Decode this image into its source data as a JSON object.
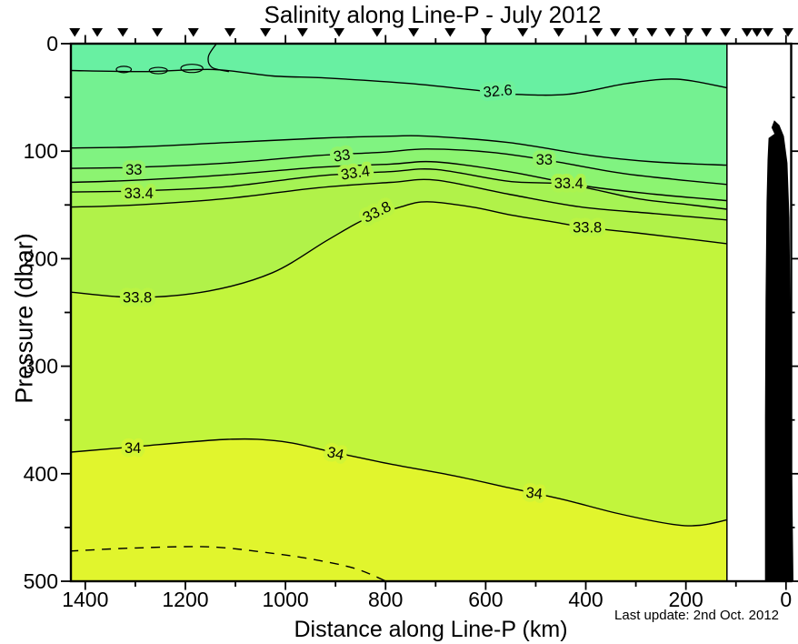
{
  "footer": {
    "last_update": "Last update: 2nd Oct. 2012"
  },
  "chart_data": {
    "type": "filled-contour-section",
    "title": "Salinity along Line-P - July 2012",
    "xlabel": "Distance along Line-P (km)",
    "ylabel": "Pressure (dbar)",
    "x_axis": {
      "label_ticks": [
        1400,
        1200,
        1000,
        800,
        600,
        400,
        200,
        0
      ],
      "minor_step_km": 100,
      "max_km": 1430,
      "min_km": -10,
      "reversed": true
    },
    "y_axis": {
      "label_ticks": [
        0,
        100,
        200,
        300,
        400,
        500
      ],
      "minor_step_dbar": 50,
      "min_dbar": 0,
      "max_dbar": 500
    },
    "data_region": {
      "from_km": 1432,
      "to_km": 118
    },
    "station_positions_km": [
      1421,
      1376,
      1325,
      1256,
      1184,
      1111,
      1040,
      966,
      893,
      817,
      744,
      671,
      599,
      526,
      454,
      377,
      341,
      305,
      268,
      232,
      196,
      159,
      121,
      78,
      58,
      36,
      -4
    ],
    "band_levels": [
      "<32.6",
      "32.6-32.8",
      "32.8-33.0",
      "33.0-33.2",
      "33.2-33.4",
      "33.4-33.6",
      "33.6-33.8",
      "33.8-34.0",
      ">34.0"
    ],
    "band_colors": [
      "#68F0A2",
      "#74F191",
      "#80F381",
      "#8CF471",
      "#99F461",
      "#A5F354",
      "#B1F249",
      "#C2F53C",
      "#E1F52D"
    ],
    "contours": [
      {
        "salinity": 32.6,
        "points_km_dbar": [
          [
            1432,
            25
          ],
          [
            1280,
            26
          ],
          [
            1144,
            24
          ],
          [
            1026,
            30
          ],
          [
            917,
            32
          ],
          [
            753,
            37
          ],
          [
            626,
            43
          ],
          [
            544,
            47
          ],
          [
            435,
            47
          ],
          [
            317,
            37
          ],
          [
            218,
            33
          ],
          [
            118,
            41
          ]
        ]
      },
      {
        "salinity": 32.8,
        "points_km_dbar": [
          [
            1432,
            97
          ],
          [
            1298,
            96
          ],
          [
            1116,
            92
          ],
          [
            935,
            88
          ],
          [
            790,
            86
          ],
          [
            717,
            86
          ],
          [
            554,
            92
          ],
          [
            390,
            104
          ],
          [
            263,
            110
          ],
          [
            118,
            113
          ]
        ]
      },
      {
        "salinity": 33.0,
        "points_km_dbar": [
          [
            1432,
            116
          ],
          [
            1298,
            115
          ],
          [
            1116,
            111
          ],
          [
            935,
            104
          ],
          [
            808,
            101
          ],
          [
            717,
            98
          ],
          [
            590,
            101
          ],
          [
            481,
            108
          ],
          [
            336,
            120
          ],
          [
            227,
            126
          ],
          [
            118,
            131
          ]
        ]
      },
      {
        "salinity": 33.2,
        "points_km_dbar": [
          [
            1432,
            129
          ],
          [
            1298,
            127
          ],
          [
            1116,
            122
          ],
          [
            935,
            115
          ],
          [
            790,
            112
          ],
          [
            699,
            110
          ],
          [
            554,
            119
          ],
          [
            408,
            132
          ],
          [
            263,
            140
          ],
          [
            118,
            146
          ]
        ]
      },
      {
        "salinity": 33.4,
        "points_km_dbar": [
          [
            1432,
            138
          ],
          [
            1298,
            137
          ],
          [
            1116,
            133
          ],
          [
            935,
            123
          ],
          [
            790,
            119
          ],
          [
            699,
            117
          ],
          [
            554,
            128
          ],
          [
            435,
            131
          ],
          [
            299,
            144
          ],
          [
            190,
            150
          ],
          [
            118,
            154
          ]
        ]
      },
      {
        "salinity": 33.6,
        "points_km_dbar": [
          [
            1432,
            152
          ],
          [
            1298,
            150
          ],
          [
            1116,
            144
          ],
          [
            935,
            134
          ],
          [
            790,
            129
          ],
          [
            699,
            127
          ],
          [
            554,
            140
          ],
          [
            408,
            152
          ],
          [
            263,
            158
          ],
          [
            118,
            164
          ]
        ]
      },
      {
        "salinity": 33.8,
        "points_km_dbar": [
          [
            1432,
            231
          ],
          [
            1298,
            236
          ],
          [
            1153,
            230
          ],
          [
            1026,
            213
          ],
          [
            917,
            183
          ],
          [
            844,
            164
          ],
          [
            771,
            152
          ],
          [
            717,
            147
          ],
          [
            626,
            152
          ],
          [
            554,
            159
          ],
          [
            463,
            166
          ],
          [
            397,
            171
          ],
          [
            299,
            176
          ],
          [
            208,
            181
          ],
          [
            118,
            186
          ]
        ]
      },
      {
        "salinity": 34.0,
        "points_km_dbar": [
          [
            1432,
            380
          ],
          [
            1305,
            375
          ],
          [
            1116,
            368
          ],
          [
            1007,
            370
          ],
          [
            904,
            380
          ],
          [
            790,
            391
          ],
          [
            662,
            402
          ],
          [
            554,
            413
          ],
          [
            445,
            424
          ],
          [
            336,
            437
          ],
          [
            227,
            447
          ],
          [
            172,
            448
          ],
          [
            118,
            443
          ]
        ]
      }
    ],
    "dashed_contour": {
      "salinity": 34.2,
      "points_km_dbar": [
        [
          1432,
          472
        ],
        [
          1298,
          469
        ],
        [
          1153,
          468
        ],
        [
          1044,
          473
        ],
        [
          953,
          479
        ],
        [
          862,
          488
        ],
        [
          799,
          500
        ]
      ]
    },
    "surface_features": {
      "spur_points_km_dbar": [
        [
          1138,
          0
        ],
        [
          1154,
          12
        ],
        [
          1147,
          22
        ],
        [
          1113,
          26
        ]
      ],
      "closed_cells": [
        {
          "km": 1323,
          "dbar": 24,
          "rx_km": 15,
          "ry_dbar": 2.5
        },
        {
          "km": 1254,
          "dbar": 25,
          "rx_km": 18,
          "ry_dbar": 2.5
        },
        {
          "km": 1187,
          "dbar": 23,
          "rx_km": 22,
          "ry_dbar": 3.5
        }
      ]
    },
    "contour_labels": [
      {
        "text": "32.6",
        "km": 575,
        "dbar": 44,
        "rot": -5
      },
      {
        "text": "33",
        "km": 1303,
        "dbar": 117,
        "rot": 0
      },
      {
        "text": "33",
        "km": 886,
        "dbar": 104,
        "rot": -8
      },
      {
        "text": "33",
        "km": 483,
        "dbar": 108,
        "rot": 0
      },
      {
        "text": "33.4",
        "km": 1293,
        "dbar": 139,
        "rot": 0
      },
      {
        "text": "33.4",
        "km": 859,
        "dbar": 120,
        "rot": -8
      },
      {
        "text": "33.4",
        "km": 434,
        "dbar": 130,
        "rot": 0
      },
      {
        "text": "33.8",
        "km": 1296,
        "dbar": 236,
        "rot": 0
      },
      {
        "text": "33.8",
        "km": 813,
        "dbar": 156,
        "rot": -27
      },
      {
        "text": "33.8",
        "km": 397,
        "dbar": 171,
        "rot": 0
      },
      {
        "text": "34",
        "km": 1305,
        "dbar": 376,
        "rot": 0
      },
      {
        "text": "34",
        "km": 902,
        "dbar": 381,
        "rot": 12
      },
      {
        "text": "34",
        "km": 504,
        "dbar": 418,
        "rot": 6
      }
    ],
    "label_halo_colors": {
      "32.6": "#6EF19A",
      "33": "#92F469",
      "33.4": "#ABF34E",
      "33.8": "#BAF442",
      "34": "#D2F535"
    },
    "coast_profile_km_dbar": [
      [
        23,
        72
      ],
      [
        28,
        78
      ],
      [
        22,
        84
      ],
      [
        34,
        88
      ],
      [
        36,
        108
      ],
      [
        38,
        147
      ],
      [
        40,
        238
      ],
      [
        41,
        348
      ],
      [
        41,
        500
      ],
      [
        -14,
        500
      ],
      [
        -9,
        314
      ],
      [
        -6,
        162
      ],
      [
        -2,
        111
      ],
      [
        5,
        86
      ],
      [
        14,
        76
      ]
    ],
    "colors": {
      "contour_line": "#000000",
      "coast_fill": "#000000",
      "frame": "#000000",
      "background": "#ffffff",
      "station_marker": "#000000"
    }
  }
}
